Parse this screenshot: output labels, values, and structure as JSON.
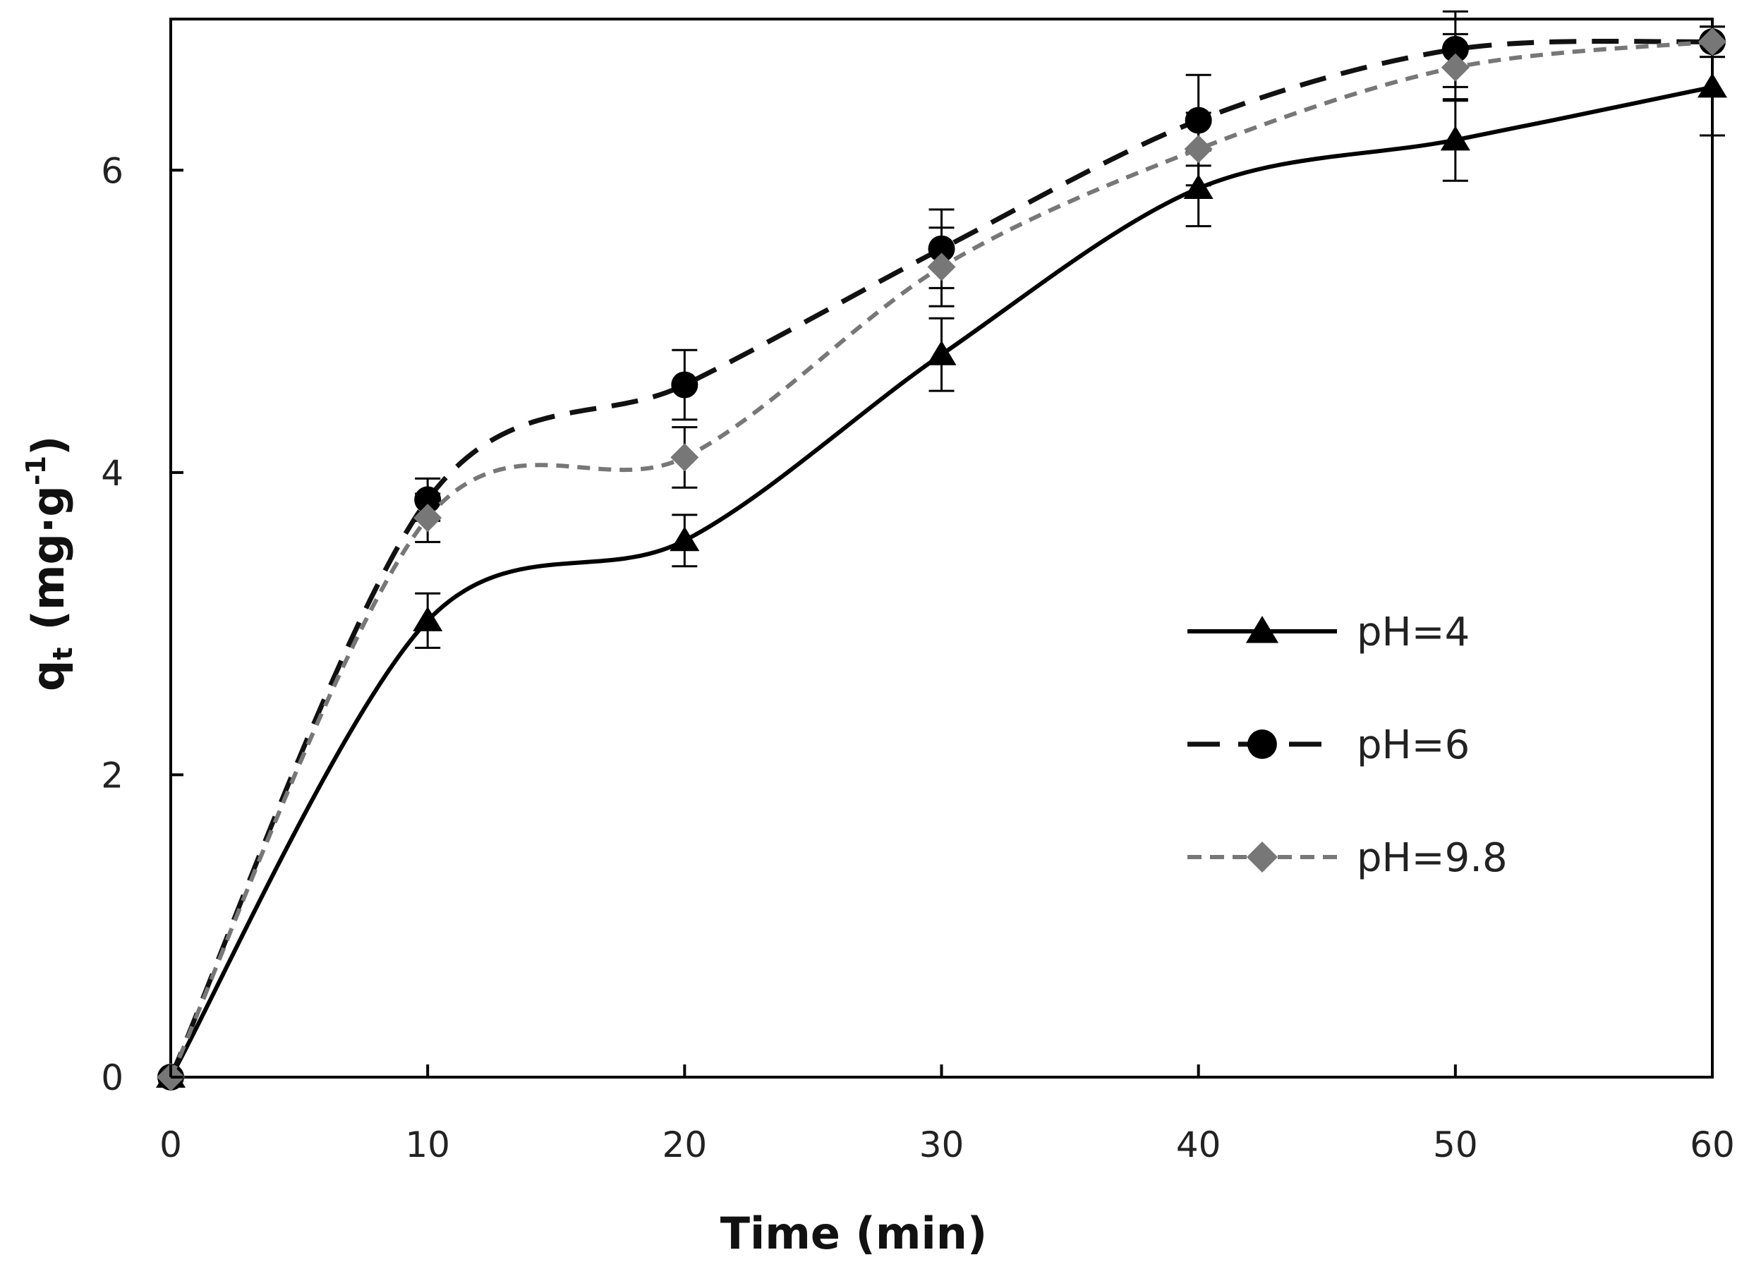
{
  "chart_data": {
    "type": "line",
    "xlabel": "Time (min)",
    "ylabel": {
      "main": "q",
      "sub": "t",
      "unit": "(mg·g",
      "sup": "-1",
      "close": ")"
    },
    "xlim": [
      0,
      60
    ],
    "ylim": [
      0,
      7
    ],
    "xticks": [
      0,
      10,
      20,
      30,
      40,
      50,
      60
    ],
    "yticks": [
      0,
      2,
      4,
      6
    ],
    "grid": false,
    "legend_position": "right-middle",
    "x": [
      0,
      10,
      20,
      30,
      40,
      50,
      60
    ],
    "series": [
      {
        "name": "pH=4",
        "marker": "triangle",
        "line": "solid",
        "color": "#000000",
        "values": [
          0,
          3.02,
          3.55,
          4.78,
          5.88,
          6.2,
          6.55
        ],
        "errors": [
          0,
          0.18,
          0.17,
          0.24,
          0.25,
          0.27,
          0.32
        ]
      },
      {
        "name": "pH=6",
        "marker": "circle",
        "line": "dashed",
        "color": "#000000",
        "values": [
          0,
          3.82,
          4.58,
          5.48,
          6.33,
          6.8,
          6.85
        ],
        "errors": [
          0,
          0.14,
          0.23,
          0.26,
          0.3,
          0.25,
          0.1
        ]
      },
      {
        "name": "pH=9.8",
        "marker": "diamond",
        "line": "dotted",
        "color": "#777777",
        "values": [
          0,
          3.7,
          4.1,
          5.36,
          6.14,
          6.68,
          6.85
        ],
        "errors": [
          0,
          0.16,
          0.2,
          0.26,
          0.24,
          0.22,
          0.1
        ]
      }
    ]
  }
}
